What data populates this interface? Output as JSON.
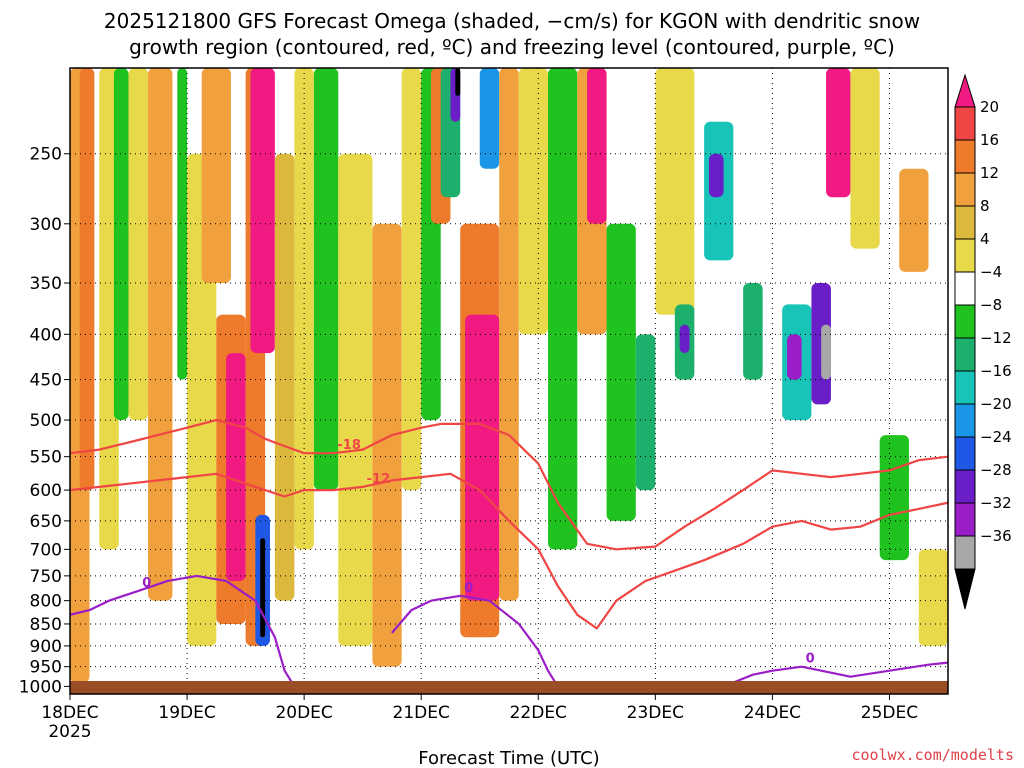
{
  "chart_data": {
    "type": "heatmap",
    "title_lines": [
      "2025121800 GFS Forecast Omega (shaded, −cm/s) for KGON with dendritic snow",
      "growth region (contoured, red, ºC) and freezing level (contoured, purple, ºC)"
    ],
    "xlabel": "Forecast Time (UTC)",
    "x_ticks": [
      {
        "label": "18DEC",
        "label2": "2025",
        "t": 0
      },
      {
        "label": "19DEC",
        "t": 24
      },
      {
        "label": "20DEC",
        "t": 48
      },
      {
        "label": "21DEC",
        "t": 72
      },
      {
        "label": "22DEC",
        "t": 96
      },
      {
        "label": "23DEC",
        "t": 120
      },
      {
        "label": "24DEC",
        "t": 144
      },
      {
        "label": "25DEC",
        "t": 168
      }
    ],
    "xlim": [
      0,
      180
    ],
    "y_ticks": [
      250,
      300,
      350,
      400,
      450,
      500,
      550,
      600,
      650,
      700,
      750,
      800,
      850,
      900,
      950,
      1000
    ],
    "ylim": [
      200,
      1020
    ],
    "y_scale": "log",
    "colorbar": {
      "labels": [
        "20",
        "16",
        "12",
        "8",
        "4",
        "−4",
        "−8",
        "−12",
        "−16",
        "−20",
        "−24",
        "−28",
        "−32",
        "−36"
      ],
      "colors": [
        "#f01a82",
        "#f04545",
        "#ee7a2c",
        "#f0a03c",
        "#dcb93c",
        "#e8d94a",
        "#ffffff",
        "#1fc21f",
        "#1cb06c",
        "#18c4b8",
        "#1a96e6",
        "#2058e6",
        "#6a1ec8",
        "#9a1ec8",
        "#a8a8a8",
        "#000000"
      ]
    },
    "red_contour_labels": [
      "-18",
      "-12"
    ],
    "purple_contour_label": "0",
    "red_contours": [
      {
        "label": "-18",
        "points": [
          [
            0,
            545
          ],
          [
            6,
            540
          ],
          [
            12,
            530
          ],
          [
            18,
            520
          ],
          [
            24,
            510
          ],
          [
            30,
            500
          ],
          [
            36,
            510
          ],
          [
            40,
            525
          ],
          [
            44,
            535
          ],
          [
            48,
            545
          ],
          [
            54,
            545
          ],
          [
            60,
            540
          ],
          [
            66,
            520
          ],
          [
            72,
            510
          ],
          [
            76,
            505
          ],
          [
            84,
            505
          ],
          [
            90,
            520
          ],
          [
            96,
            560
          ],
          [
            100,
            620
          ],
          [
            106,
            690
          ],
          [
            112,
            700
          ],
          [
            120,
            695
          ],
          [
            126,
            660
          ],
          [
            132,
            630
          ],
          [
            138,
            600
          ],
          [
            144,
            570
          ],
          [
            150,
            575
          ],
          [
            156,
            580
          ],
          [
            162,
            575
          ],
          [
            168,
            570
          ],
          [
            174,
            555
          ],
          [
            180,
            550
          ]
        ]
      },
      {
        "label": "-12",
        "points": [
          [
            0,
            600
          ],
          [
            6,
            595
          ],
          [
            12,
            590
          ],
          [
            18,
            585
          ],
          [
            24,
            580
          ],
          [
            30,
            575
          ],
          [
            36,
            590
          ],
          [
            40,
            600
          ],
          [
            44,
            610
          ],
          [
            48,
            600
          ],
          [
            54,
            600
          ],
          [
            60,
            595
          ],
          [
            66,
            585
          ],
          [
            72,
            580
          ],
          [
            78,
            575
          ],
          [
            84,
            600
          ],
          [
            90,
            650
          ],
          [
            96,
            700
          ],
          [
            100,
            770
          ],
          [
            104,
            830
          ],
          [
            108,
            860
          ],
          [
            112,
            800
          ],
          [
            118,
            760
          ],
          [
            124,
            740
          ],
          [
            130,
            720
          ],
          [
            138,
            690
          ],
          [
            144,
            660
          ],
          [
            150,
            650
          ],
          [
            156,
            665
          ],
          [
            162,
            660
          ],
          [
            168,
            640
          ],
          [
            174,
            630
          ],
          [
            180,
            620
          ]
        ]
      }
    ],
    "purple_contours": [
      {
        "label": "0",
        "points": [
          [
            0,
            830
          ],
          [
            4,
            820
          ],
          [
            8,
            800
          ],
          [
            14,
            780
          ],
          [
            20,
            760
          ],
          [
            26,
            750
          ],
          [
            32,
            760
          ],
          [
            38,
            800
          ],
          [
            42,
            880
          ],
          [
            44,
            960
          ],
          [
            46,
            1000
          ]
        ]
      },
      {
        "label": "0",
        "points": [
          [
            66,
            870
          ],
          [
            70,
            820
          ],
          [
            74,
            800
          ],
          [
            80,
            790
          ],
          [
            86,
            800
          ],
          [
            92,
            850
          ],
          [
            96,
            910
          ],
          [
            98,
            960
          ],
          [
            100,
            1000
          ]
        ]
      },
      {
        "label": "0",
        "points": [
          [
            136,
            990
          ],
          [
            140,
            970
          ],
          [
            144,
            960
          ],
          [
            150,
            950
          ],
          [
            154,
            960
          ],
          [
            160,
            975
          ],
          [
            168,
            960
          ],
          [
            176,
            945
          ],
          [
            180,
            940
          ]
        ]
      }
    ],
    "bands": [
      {
        "t0": 0,
        "t1": 4,
        "p0": 200,
        "p1": 990,
        "c": "#f0a03c"
      },
      {
        "t0": 2,
        "t1": 5,
        "p0": 200,
        "p1": 600,
        "c": "#ee7a2c"
      },
      {
        "t0": 6,
        "t1": 10,
        "p0": 200,
        "p1": 700,
        "c": "#e8d94a"
      },
      {
        "t0": 9,
        "t1": 12,
        "p0": 200,
        "p1": 500,
        "c": "#1fc21f"
      },
      {
        "t0": 12,
        "t1": 16,
        "p0": 200,
        "p1": 500,
        "c": "#e8d94a"
      },
      {
        "t0": 16,
        "t1": 21,
        "p0": 200,
        "p1": 800,
        "c": "#f0a03c"
      },
      {
        "t0": 22,
        "t1": 24,
        "p0": 200,
        "p1": 450,
        "c": "#1fc21f"
      },
      {
        "t0": 24,
        "t1": 30,
        "p0": 250,
        "p1": 900,
        "c": "#e8d94a"
      },
      {
        "t0": 27,
        "t1": 33,
        "p0": 200,
        "p1": 350,
        "c": "#f0a03c"
      },
      {
        "t0": 30,
        "t1": 36,
        "p0": 380,
        "p1": 850,
        "c": "#ee7a2c"
      },
      {
        "t0": 32,
        "t1": 36,
        "p0": 420,
        "p1": 760,
        "c": "#f01a82"
      },
      {
        "t0": 36,
        "t1": 40,
        "p0": 200,
        "p1": 900,
        "c": "#ee7a2c"
      },
      {
        "t0": 37,
        "t1": 42,
        "p0": 200,
        "p1": 420,
        "c": "#f01a82"
      },
      {
        "t0": 38,
        "t1": 41,
        "p0": 640,
        "p1": 900,
        "c": "#2058e6"
      },
      {
        "t0": 39,
        "t1": 40,
        "p0": 680,
        "p1": 880,
        "c": "#000000"
      },
      {
        "t0": 42,
        "t1": 46,
        "p0": 250,
        "p1": 800,
        "c": "#dcb93c"
      },
      {
        "t0": 46,
        "t1": 50,
        "p0": 200,
        "p1": 700,
        "c": "#e8d94a"
      },
      {
        "t0": 50,
        "t1": 55,
        "p0": 200,
        "p1": 600,
        "c": "#1fc21f"
      },
      {
        "t0": 55,
        "t1": 62,
        "p0": 250,
        "p1": 900,
        "c": "#e8d94a"
      },
      {
        "t0": 62,
        "t1": 68,
        "p0": 300,
        "p1": 950,
        "c": "#f0a03c"
      },
      {
        "t0": 68,
        "t1": 72,
        "p0": 200,
        "p1": 600,
        "c": "#e8d94a"
      },
      {
        "t0": 72,
        "t1": 76,
        "p0": 200,
        "p1": 500,
        "c": "#1fc21f"
      },
      {
        "t0": 74,
        "t1": 78,
        "p0": 200,
        "p1": 300,
        "c": "#ee7a2c"
      },
      {
        "t0": 76,
        "t1": 80,
        "p0": 200,
        "p1": 280,
        "c": "#1cb06c"
      },
      {
        "t0": 78,
        "t1": 80,
        "p0": 200,
        "p1": 230,
        "c": "#6a1ec8"
      },
      {
        "t0": 79,
        "t1": 80,
        "p0": 200,
        "p1": 215,
        "c": "#000000"
      },
      {
        "t0": 80,
        "t1": 88,
        "p0": 300,
        "p1": 880,
        "c": "#ee7a2c"
      },
      {
        "t0": 81,
        "t1": 88,
        "p0": 380,
        "p1": 800,
        "c": "#f01a82"
      },
      {
        "t0": 84,
        "t1": 88,
        "p0": 200,
        "p1": 260,
        "c": "#1a96e6"
      },
      {
        "t0": 88,
        "t1": 92,
        "p0": 200,
        "p1": 800,
        "c": "#f0a03c"
      },
      {
        "t0": 92,
        "t1": 98,
        "p0": 200,
        "p1": 400,
        "c": "#e8d94a"
      },
      {
        "t0": 98,
        "t1": 104,
        "p0": 200,
        "p1": 700,
        "c": "#1fc21f"
      },
      {
        "t0": 104,
        "t1": 110,
        "p0": 200,
        "p1": 400,
        "c": "#f0a03c"
      },
      {
        "t0": 106,
        "t1": 110,
        "p0": 200,
        "p1": 300,
        "c": "#f01a82"
      },
      {
        "t0": 110,
        "t1": 116,
        "p0": 300,
        "p1": 650,
        "c": "#1fc21f"
      },
      {
        "t0": 116,
        "t1": 120,
        "p0": 400,
        "p1": 600,
        "c": "#1cb06c"
      },
      {
        "t0": 120,
        "t1": 128,
        "p0": 200,
        "p1": 380,
        "c": "#e8d94a"
      },
      {
        "t0": 124,
        "t1": 128,
        "p0": 370,
        "p1": 450,
        "c": "#1cb06c"
      },
      {
        "t0": 125,
        "t1": 127,
        "p0": 390,
        "p1": 420,
        "c": "#6a1ec8"
      },
      {
        "t0": 130,
        "t1": 136,
        "p0": 230,
        "p1": 330,
        "c": "#18c4b8"
      },
      {
        "t0": 131,
        "t1": 134,
        "p0": 250,
        "p1": 280,
        "c": "#6a1ec8"
      },
      {
        "t0": 138,
        "t1": 142,
        "p0": 350,
        "p1": 450,
        "c": "#1cb06c"
      },
      {
        "t0": 146,
        "t1": 152,
        "p0": 370,
        "p1": 500,
        "c": "#18c4b8"
      },
      {
        "t0": 147,
        "t1": 150,
        "p0": 400,
        "p1": 450,
        "c": "#9a1ec8"
      },
      {
        "t0": 152,
        "t1": 156,
        "p0": 350,
        "p1": 480,
        "c": "#6a1ec8"
      },
      {
        "t0": 154,
        "t1": 156,
        "p0": 390,
        "p1": 450,
        "c": "#a8a8a8"
      },
      {
        "t0": 155,
        "t1": 160,
        "p0": 200,
        "p1": 280,
        "c": "#f01a82"
      },
      {
        "t0": 160,
        "t1": 166,
        "p0": 200,
        "p1": 320,
        "c": "#e8d94a"
      },
      {
        "t0": 170,
        "t1": 176,
        "p0": 260,
        "p1": 340,
        "c": "#f0a03c"
      },
      {
        "t0": 166,
        "t1": 172,
        "p0": 520,
        "p1": 720,
        "c": "#1fc21f"
      },
      {
        "t0": 174,
        "t1": 180,
        "p0": 700,
        "p1": 900,
        "c": "#e8d94a"
      }
    ]
  },
  "credit": "coolwx.com/modelts"
}
